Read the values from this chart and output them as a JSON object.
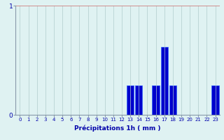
{
  "hours": [
    0,
    1,
    2,
    3,
    4,
    5,
    6,
    7,
    8,
    9,
    10,
    11,
    12,
    13,
    14,
    15,
    16,
    17,
    18,
    19,
    20,
    21,
    22,
    23
  ],
  "values": [
    0,
    0,
    0,
    0,
    0,
    0,
    0,
    0,
    0,
    0,
    0,
    0,
    0,
    0.27,
    0.27,
    0,
    0.27,
    0.62,
    0.27,
    0,
    0,
    0,
    0,
    0.27
  ],
  "bar_color": "#0000cc",
  "bar_edge_color": "#3366ff",
  "background_color": "#dff2f2",
  "grid_color": "#b0cccc",
  "axis_color": "#8899aa",
  "text_color": "#0000aa",
  "xlabel": "Précipitations 1h ( mm )",
  "ylim": [
    0,
    1.0
  ],
  "yticks": [
    0,
    1
  ],
  "xlim": [
    -0.5,
    23.5
  ]
}
